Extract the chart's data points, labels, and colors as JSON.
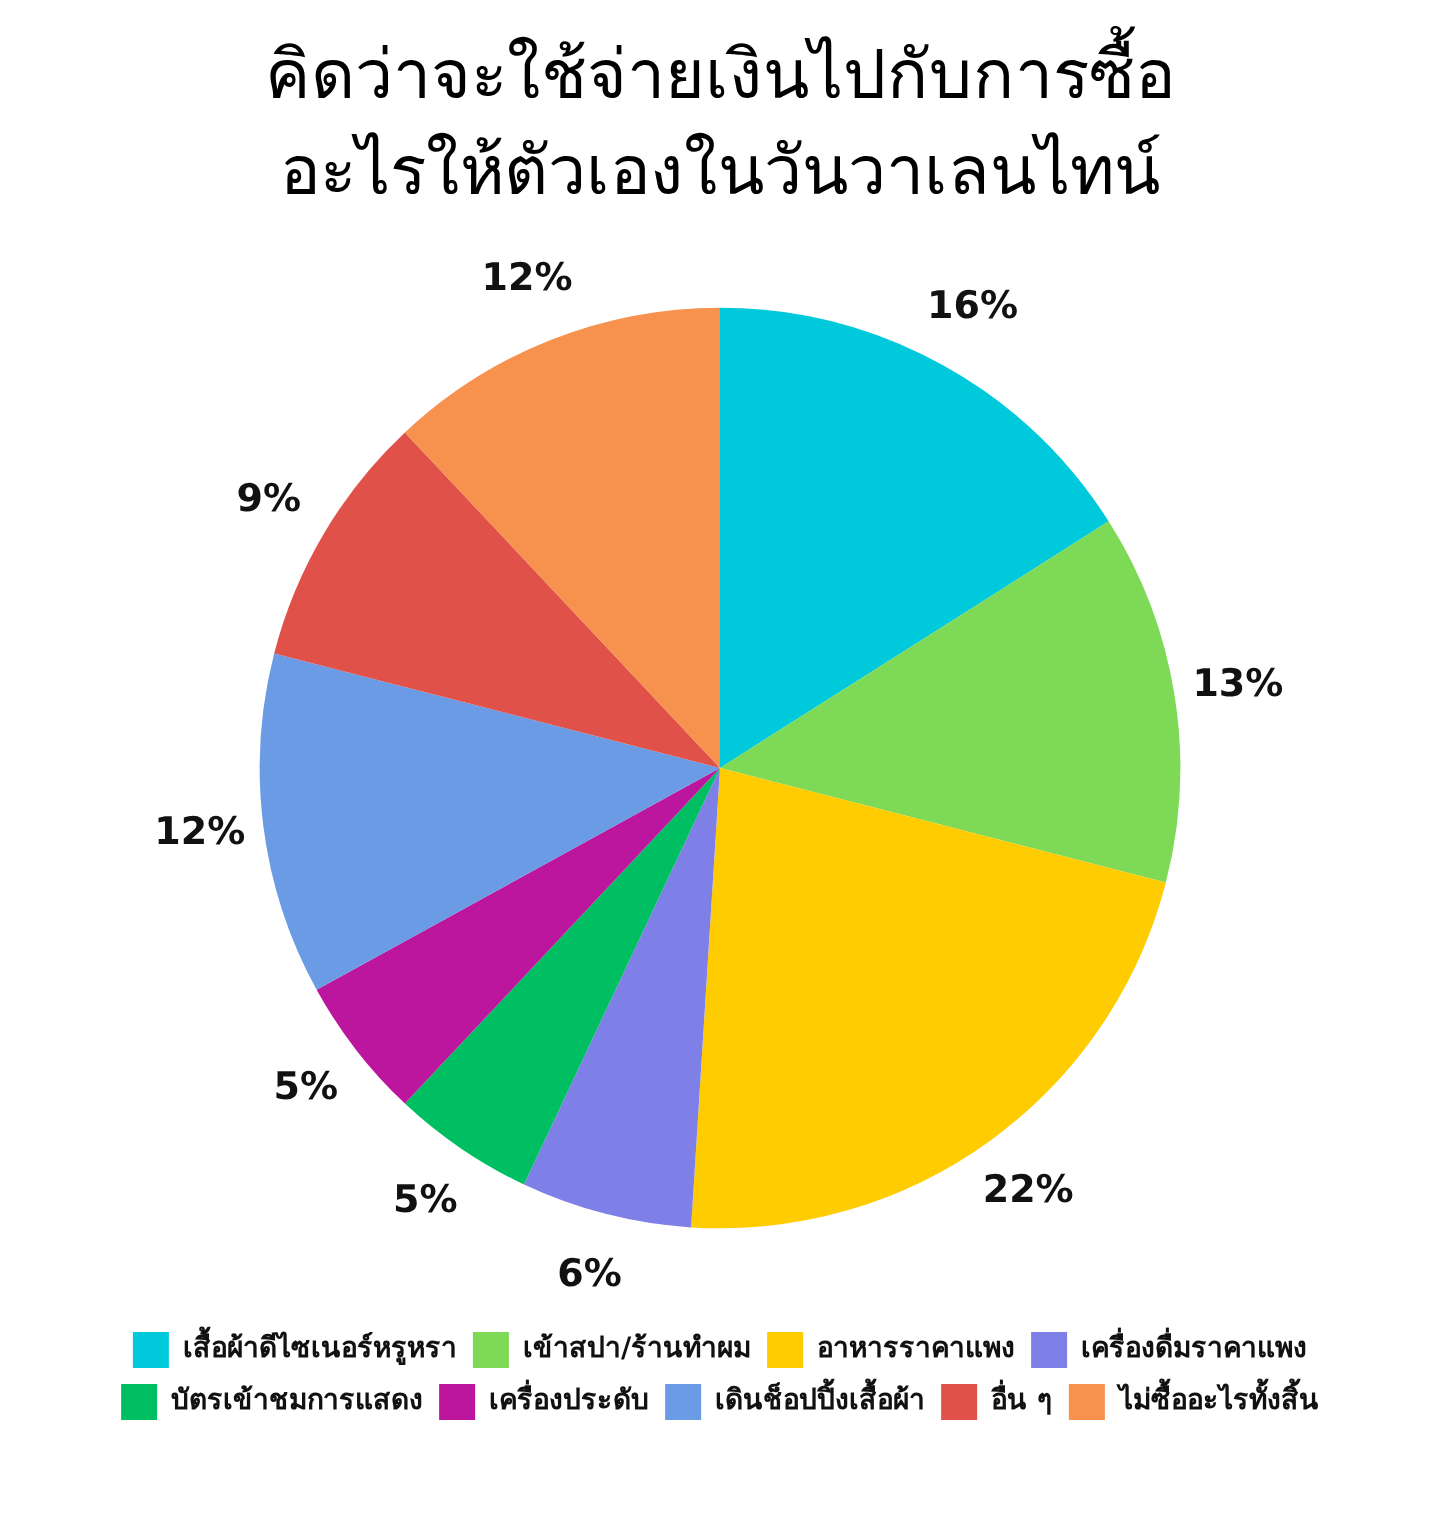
{
  "chart_data": {
    "type": "pie",
    "title": "คิดว่าจะใช้จ่ายเงินไปกับการซื้อ\nอะไรให้ตัวเองในวันวาเลนไทน์",
    "categories": [
      "เสื้อผ้าดีไซเนอร์หรูหรา",
      "เข้าสปา/ร้านทำผม",
      "อาหารราคาแพง",
      "เครื่องดื่มราคาแพง",
      "บัตรเข้าชมการแสดง",
      "เครื่องประดับ",
      "เดินช็อปปิ้งเสื้อผ้า",
      "อื่น ๆ",
      "ไม่ซื้ออะไรทั้งสิ้น"
    ],
    "values": [
      16,
      13,
      22,
      6,
      5,
      5,
      12,
      9,
      12
    ],
    "value_labels": [
      "16%",
      "13%",
      "22%",
      "6%",
      "5%",
      "5%",
      "12%",
      "9%",
      "12%"
    ],
    "colors": [
      "#00c9dc",
      "#7ed957",
      "#ffcc02",
      "#7f7fe8",
      "#00bf63",
      "#bb169d",
      "#6a9be4",
      "#e0514a",
      "#f7924e"
    ],
    "legend": "bottom"
  }
}
